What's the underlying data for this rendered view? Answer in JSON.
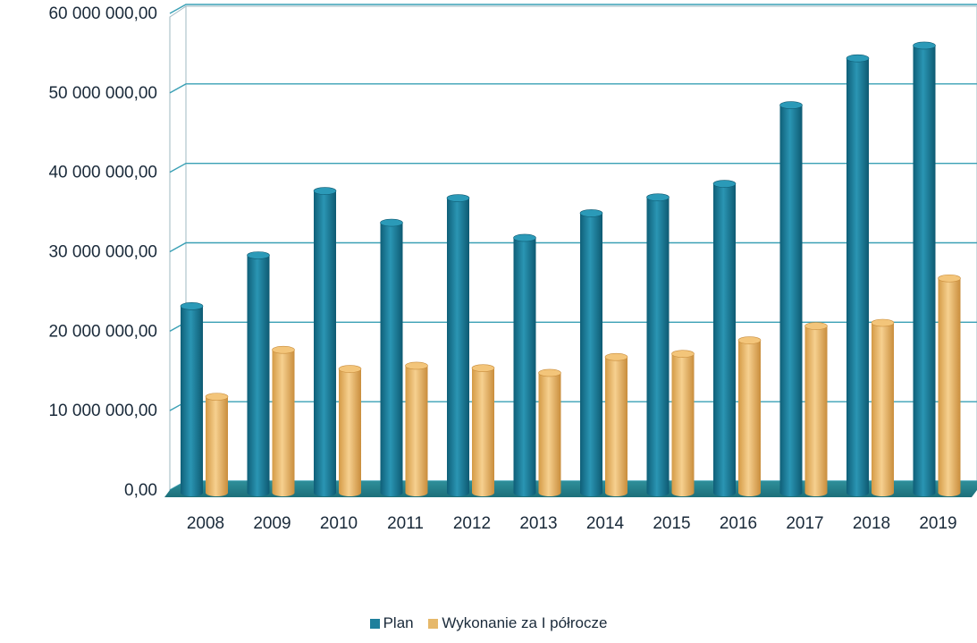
{
  "chart_data": {
    "type": "bar",
    "title": "",
    "xlabel": "",
    "ylabel": "",
    "ylim": [
      0,
      60000000
    ],
    "yticks": [
      "0,00",
      "10 000 000,00",
      "20 000 000,00",
      "30 000 000,00",
      "40 000 000,00",
      "50 000 000,00",
      "60 000 000,00"
    ],
    "categories": [
      "2008",
      "2009",
      "2010",
      "2011",
      "2012",
      "2013",
      "2014",
      "2015",
      "2016",
      "2017",
      "2018",
      "2019"
    ],
    "series": [
      {
        "name": "Plan",
        "color": "#1e7f9c",
        "values": [
          22700000,
          29100000,
          37200000,
          33200000,
          36300000,
          31300000,
          34400000,
          36400000,
          38100000,
          48000000,
          53900000,
          55500000
        ]
      },
      {
        "name": "Wykonanie za I półrocze",
        "color": "#e6b86a",
        "values": [
          11300000,
          17200000,
          14800000,
          15200000,
          14900000,
          14300000,
          16300000,
          16700000,
          18400000,
          20200000,
          20600000,
          26200000
        ]
      }
    ],
    "grid": true,
    "legend_position": "bottom"
  }
}
